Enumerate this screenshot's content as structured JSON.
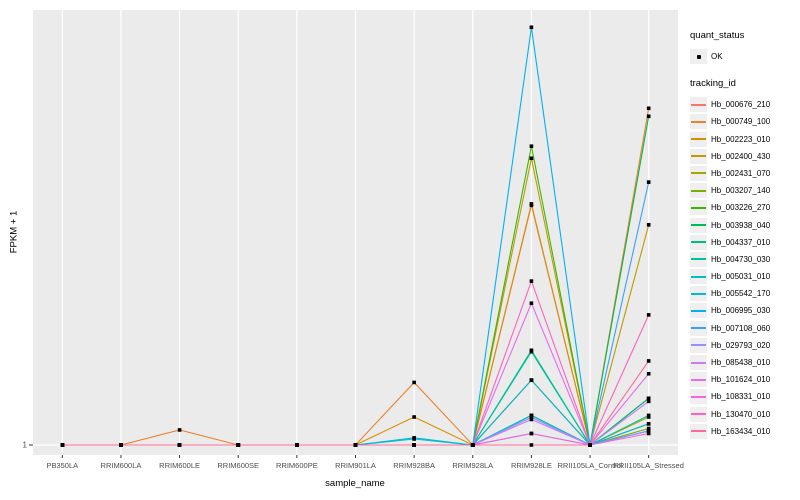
{
  "chart_data": {
    "type": "line",
    "title": "",
    "xlabel": "sample_name",
    "ylabel": "FPKM + 1",
    "y_scale": "log10",
    "ylim": [
      1,
      1000
    ],
    "y_tick_labels": [
      "1"
    ],
    "grid": "white-vertical-majors-on-gray-panel",
    "legend_position": "right",
    "point_shape": "filled-square",
    "point_color": "#000000",
    "panel_color": "#EBEBEB",
    "categories": [
      "PB350LA",
      "RRIM600LA",
      "RRIM600LE",
      "RRIM600SE",
      "RRIM600PE",
      "RRIM901LA",
      "RRIM928BA",
      "RRIM928LA",
      "RRIM928LE",
      "RRII105LA_Control",
      "RRII105LA_Stressed"
    ],
    "series": [
      {
        "name": "Hb_000676_210",
        "color": "#F8766D",
        "values": [
          1,
          1,
          1,
          1,
          1,
          1,
          1,
          1,
          45,
          1,
          2.1
        ]
      },
      {
        "name": "Hb_000749_100",
        "color": "#EA8331",
        "values": [
          1,
          1,
          1.27,
          1,
          1,
          1,
          2.7,
          1,
          2.8,
          1,
          210
        ]
      },
      {
        "name": "Hb_002223_010",
        "color": "#D89000",
        "values": [
          1,
          1,
          1,
          1,
          1,
          1,
          1.56,
          1,
          46,
          1,
          1.4
        ]
      },
      {
        "name": "Hb_002400_430",
        "color": "#C09B00",
        "values": [
          1,
          1,
          1,
          1,
          1,
          1,
          1,
          1,
          95,
          1,
          33
        ]
      },
      {
        "name": "Hb_002431_070",
        "color": "#A3A500",
        "values": [
          1,
          1,
          1,
          1,
          1,
          1,
          1,
          1,
          2.8,
          1,
          1.56
        ]
      },
      {
        "name": "Hb_003207_140",
        "color": "#7CAE00",
        "values": [
          1,
          1,
          1,
          1,
          1,
          1,
          1,
          1,
          1.6,
          1,
          1.3
        ]
      },
      {
        "name": "Hb_003226_270",
        "color": "#39B600",
        "values": [
          1,
          1,
          1,
          1,
          1,
          1,
          1,
          1,
          115,
          1,
          2.1
        ]
      },
      {
        "name": "Hb_003938_040",
        "color": "#00BB4E",
        "values": [
          1,
          1,
          1,
          1,
          1,
          1,
          1,
          1,
          1.6,
          1,
          185
        ]
      },
      {
        "name": "Hb_004337_010",
        "color": "#00BF7D",
        "values": [
          1,
          1,
          1,
          1,
          1,
          1,
          1,
          1,
          4.5,
          1,
          2.1
        ]
      },
      {
        "name": "Hb_004730_030",
        "color": "#00C1A3",
        "values": [
          1,
          1,
          1,
          1,
          1,
          1,
          1,
          1,
          4.4,
          1,
          1.6
        ]
      },
      {
        "name": "Hb_005031_010",
        "color": "#00BFC4",
        "values": [
          1,
          1,
          1,
          1,
          1,
          1,
          1.12,
          1,
          1.6,
          1,
          1.25
        ]
      },
      {
        "name": "Hb_005542_170",
        "color": "#00BAE0",
        "values": [
          1,
          1,
          1,
          1,
          1,
          1,
          1.1,
          1,
          2.8,
          1,
          1.4
        ]
      },
      {
        "name": "Hb_006995_030",
        "color": "#00B0F6",
        "values": [
          1,
          1,
          1,
          1,
          1,
          1,
          1,
          1,
          760,
          1,
          1.25
        ]
      },
      {
        "name": "Hb_007108_060",
        "color": "#35A2FF",
        "values": [
          1,
          1,
          1,
          1,
          1,
          1,
          1,
          1,
          1.2,
          1,
          65
        ]
      },
      {
        "name": "Hb_029793_020",
        "color": "#9590FF",
        "values": [
          1,
          1,
          1,
          1,
          1,
          1,
          1,
          1,
          1.55,
          1,
          1.25
        ]
      },
      {
        "name": "Hb_085438_010",
        "color": "#C77CFF",
        "values": [
          1,
          1,
          1,
          1,
          1,
          1,
          1,
          1,
          1.5,
          1,
          2
        ]
      },
      {
        "name": "Hb_101624_010",
        "color": "#E76BF3",
        "values": [
          1,
          1,
          1,
          1,
          1,
          1,
          1,
          1,
          9.5,
          1,
          3.1
        ]
      },
      {
        "name": "Hb_108331_010",
        "color": "#FA62DB",
        "values": [
          1,
          1,
          1,
          1,
          1,
          1,
          1,
          1,
          1.2,
          1,
          1.2
        ]
      },
      {
        "name": "Hb_130470_010",
        "color": "#FF62BC",
        "values": [
          1,
          1,
          1,
          1,
          1,
          1,
          1,
          1,
          13.5,
          1,
          7.9
        ]
      },
      {
        "name": "Hb_163434_010",
        "color": "#FF6A98",
        "values": [
          1,
          1,
          1,
          1,
          1,
          1,
          1,
          1,
          1,
          1,
          3.8
        ]
      }
    ]
  },
  "legend": {
    "quant_status": {
      "title": "quant_status",
      "items": [
        "OK"
      ]
    },
    "tracking_id": {
      "title": "tracking_id"
    }
  }
}
